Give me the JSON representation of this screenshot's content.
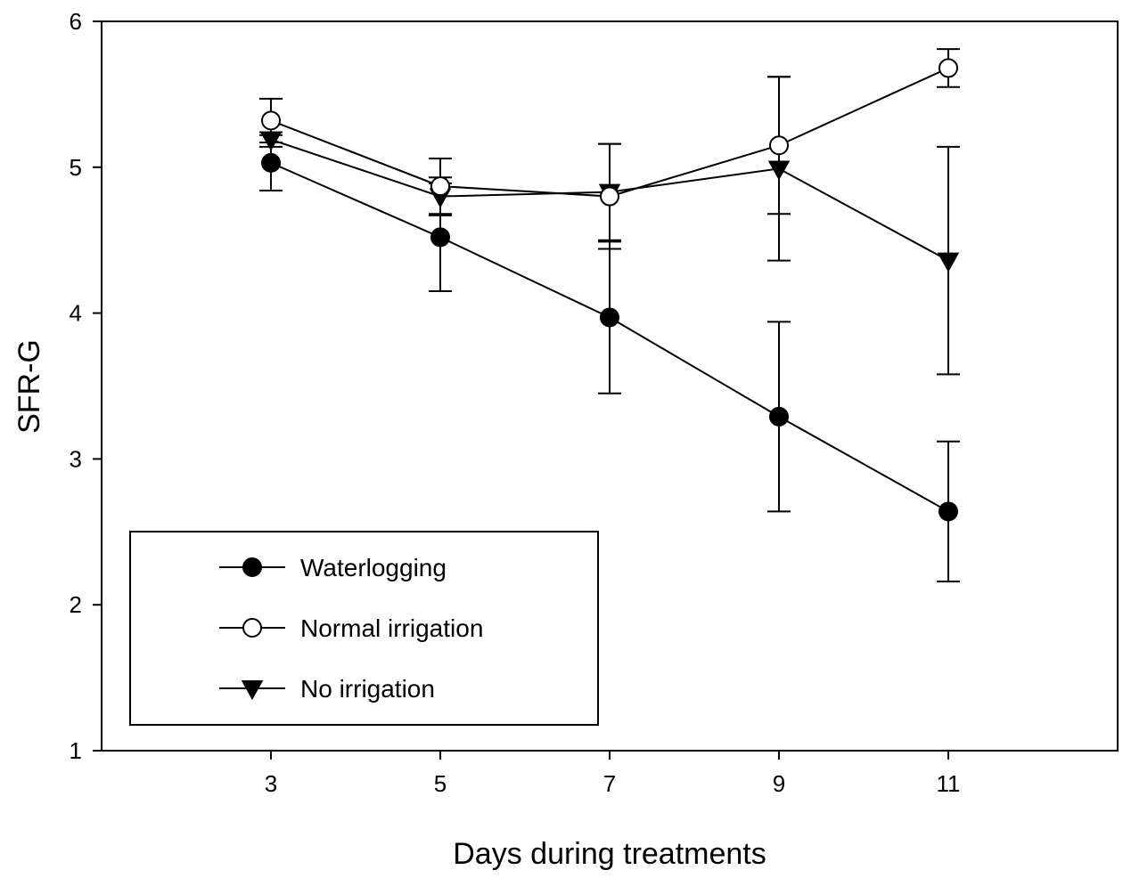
{
  "chart_data": {
    "type": "line",
    "title": "",
    "xlabel": "Days during treatments",
    "ylabel": "SFR-G",
    "x": [
      3,
      5,
      7,
      9,
      11
    ],
    "xlim": [
      1,
      13
    ],
    "ylim": [
      1,
      6
    ],
    "xticks": [
      "3",
      "5",
      "7",
      "9",
      "11"
    ],
    "yticks": [
      "1",
      "2",
      "3",
      "4",
      "5",
      "6"
    ],
    "grid": false,
    "legend_position": "bottom-left",
    "series": [
      {
        "name": "Waterlogging",
        "marker": "filled-circle",
        "values": [
          5.03,
          4.52,
          3.97,
          3.29,
          2.64
        ],
        "error": [
          0.19,
          0.37,
          0.52,
          0.65,
          0.48
        ]
      },
      {
        "name": "Normal irrigation",
        "marker": "open-circle",
        "values": [
          5.32,
          4.87,
          4.8,
          5.15,
          5.68
        ],
        "error": [
          0.15,
          0.19,
          0.36,
          0.47,
          0.13
        ]
      },
      {
        "name": "No irrigation",
        "marker": "filled-triangle-down",
        "values": [
          5.19,
          4.8,
          4.83,
          4.99,
          4.36
        ],
        "error": [
          0.05,
          0.13,
          0.33,
          0.63,
          0.78
        ]
      }
    ]
  }
}
